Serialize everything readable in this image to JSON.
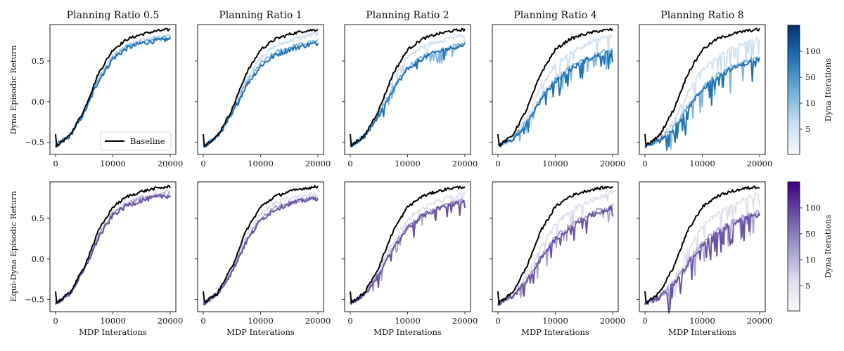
{
  "figure": {
    "row_ylabels": [
      "Dyna Episodic Return",
      "Equi-Dyna Episodic Return"
    ],
    "xlabel": "MDP Interations",
    "col_titles": [
      "Planning Ratio 0.5",
      "Planning Ratio 1",
      "Planning Ratio 2",
      "Planning Ratio 4",
      "Planning Ratio 8"
    ],
    "colorbar_label": "Dyna Iterations",
    "colorbar_ticks": [
      "5",
      "10",
      "50",
      "100"
    ],
    "legend_label": "Baseline",
    "x_ticks": [
      "0",
      "10000",
      "20000"
    ],
    "y_ticks": [
      "−0.5",
      "0.0",
      "0.5"
    ],
    "colors": {
      "baseline": "#000000",
      "dyna_light": "#c6dbef",
      "dyna_mid": "#6baed6",
      "dyna_dark": "#2171b5",
      "equi_light": "#d9d7ea",
      "equi_mid": "#9e9ac8",
      "equi_dark": "#6a51a3"
    }
  },
  "chart_data": [
    {
      "type": "line",
      "row": "Dyna",
      "title": "Planning Ratio 0.5",
      "xlabel": "",
      "ylabel": "Dyna Episodic Return",
      "xlim": [
        0,
        20000
      ],
      "ylim": [
        -0.65,
        0.95
      ],
      "legend": "lower right",
      "series": [
        {
          "name": "Baseline",
          "x": [
            0,
            2500,
            5000,
            7500,
            10000,
            12500,
            15000,
            17500,
            20000
          ],
          "y": [
            -0.55,
            -0.42,
            -0.1,
            0.35,
            0.64,
            0.77,
            0.83,
            0.87,
            0.89
          ]
        },
        {
          "x": [
            0,
            2500,
            5000,
            7500,
            10000,
            12500,
            15000,
            17500,
            20000
          ],
          "y": [
            -0.55,
            -0.42,
            -0.12,
            0.3,
            0.58,
            0.7,
            0.76,
            0.79,
            0.82
          ]
        },
        {
          "x": [
            0,
            2500,
            5000,
            7500,
            10000,
            12500,
            15000,
            17500,
            20000
          ],
          "y": [
            -0.55,
            -0.42,
            -0.13,
            0.28,
            0.55,
            0.68,
            0.74,
            0.77,
            0.79
          ]
        },
        {
          "x": [
            0,
            2500,
            5000,
            7500,
            10000,
            12500,
            15000,
            17500,
            20000
          ],
          "y": [
            -0.55,
            -0.42,
            -0.14,
            0.26,
            0.53,
            0.66,
            0.72,
            0.75,
            0.77
          ]
        }
      ]
    },
    {
      "type": "line",
      "row": "Dyna",
      "title": "Planning Ratio 1",
      "xlim": [
        0,
        20000
      ],
      "ylim": [
        -0.65,
        0.95
      ],
      "series": [
        {
          "name": "Baseline",
          "x": [
            0,
            2500,
            5000,
            7500,
            10000,
            12500,
            15000,
            17500,
            20000
          ],
          "y": [
            -0.55,
            -0.42,
            -0.1,
            0.35,
            0.64,
            0.77,
            0.83,
            0.87,
            0.89
          ]
        },
        {
          "x": [
            0,
            2500,
            5000,
            7500,
            10000,
            12500,
            15000,
            17500,
            20000
          ],
          "y": [
            -0.55,
            -0.42,
            -0.13,
            0.28,
            0.55,
            0.68,
            0.75,
            0.8,
            0.84
          ]
        },
        {
          "x": [
            0,
            2500,
            5000,
            7500,
            10000,
            12500,
            15000,
            17500,
            20000
          ],
          "y": [
            -0.55,
            -0.43,
            -0.15,
            0.22,
            0.47,
            0.6,
            0.67,
            0.71,
            0.74
          ]
        },
        {
          "x": [
            0,
            2500,
            5000,
            7500,
            10000,
            12500,
            15000,
            17500,
            20000
          ],
          "y": [
            -0.55,
            -0.43,
            -0.16,
            0.2,
            0.44,
            0.57,
            0.64,
            0.69,
            0.72
          ]
        }
      ]
    },
    {
      "type": "line",
      "row": "Dyna",
      "title": "Planning Ratio 2",
      "xlim": [
        0,
        20000
      ],
      "ylim": [
        -0.65,
        0.95
      ],
      "series": [
        {
          "name": "Baseline",
          "x": [
            0,
            2500,
            5000,
            7500,
            10000,
            12500,
            15000,
            17500,
            20000
          ],
          "y": [
            -0.55,
            -0.42,
            -0.1,
            0.35,
            0.64,
            0.77,
            0.83,
            0.87,
            0.89
          ]
        },
        {
          "x": [
            0,
            2500,
            5000,
            7500,
            10000,
            12500,
            15000,
            17500,
            20000
          ],
          "y": [
            -0.55,
            -0.42,
            -0.11,
            0.3,
            0.55,
            0.67,
            0.74,
            0.79,
            0.82
          ]
        },
        {
          "x": [
            0,
            2500,
            5000,
            7500,
            10000,
            12500,
            15000,
            17500,
            20000
          ],
          "y": [
            -0.55,
            -0.43,
            -0.16,
            0.18,
            0.42,
            0.55,
            0.62,
            0.67,
            0.71
          ]
        },
        {
          "x": [
            0,
            2500,
            5000,
            7500,
            10000,
            12500,
            15000,
            17500,
            20000
          ],
          "y": [
            -0.55,
            -0.43,
            -0.17,
            0.16,
            0.4,
            0.53,
            0.61,
            0.66,
            0.7
          ]
        }
      ]
    },
    {
      "type": "line",
      "row": "Dyna",
      "title": "Planning Ratio 4",
      "xlim": [
        0,
        20000
      ],
      "ylim": [
        -0.65,
        0.95
      ],
      "series": [
        {
          "name": "Baseline",
          "x": [
            0,
            2500,
            5000,
            7500,
            10000,
            12500,
            15000,
            17500,
            20000
          ],
          "y": [
            -0.55,
            -0.42,
            -0.1,
            0.35,
            0.64,
            0.77,
            0.83,
            0.87,
            0.89
          ]
        },
        {
          "x": [
            0,
            2500,
            5000,
            7500,
            10000,
            12500,
            15000,
            17500,
            20000
          ],
          "y": [
            -0.55,
            -0.45,
            -0.2,
            0.18,
            0.45,
            0.6,
            0.7,
            0.76,
            0.82
          ]
        },
        {
          "x": [
            0,
            2500,
            5000,
            7500,
            10000,
            12500,
            15000,
            17500,
            20000
          ],
          "y": [
            -0.55,
            -0.47,
            -0.25,
            0.05,
            0.28,
            0.42,
            0.52,
            0.6,
            0.65
          ]
        },
        {
          "x": [
            0,
            2500,
            5000,
            7500,
            10000,
            12500,
            15000,
            17500,
            20000
          ],
          "y": [
            -0.55,
            -0.47,
            -0.27,
            0.02,
            0.25,
            0.39,
            0.5,
            0.57,
            0.62
          ]
        }
      ]
    },
    {
      "type": "line",
      "row": "Dyna",
      "title": "Planning Ratio 8",
      "xlim": [
        0,
        20000
      ],
      "ylim": [
        -0.65,
        0.95
      ],
      "series": [
        {
          "name": "Baseline",
          "x": [
            0,
            2500,
            5000,
            7500,
            10000,
            12500,
            15000,
            17500,
            20000
          ],
          "y": [
            -0.55,
            -0.42,
            -0.1,
            0.35,
            0.64,
            0.77,
            0.83,
            0.87,
            0.89
          ]
        },
        {
          "x": [
            0,
            2500,
            5000,
            7500,
            10000,
            12500,
            15000,
            17500,
            20000
          ],
          "y": [
            -0.55,
            -0.47,
            -0.25,
            0.1,
            0.4,
            0.55,
            0.65,
            0.72,
            0.78
          ]
        },
        {
          "x": [
            0,
            2500,
            5000,
            7500,
            10000,
            12500,
            15000,
            17500,
            20000
          ],
          "y": [
            -0.55,
            -0.48,
            -0.32,
            -0.05,
            0.18,
            0.32,
            0.42,
            0.5,
            0.55
          ]
        },
        {
          "x": [
            0,
            2500,
            5000,
            7500,
            10000,
            12500,
            15000,
            17500,
            20000
          ],
          "y": [
            -0.55,
            -0.48,
            -0.33,
            -0.08,
            0.15,
            0.3,
            0.4,
            0.47,
            0.52
          ]
        }
      ]
    },
    {
      "type": "line",
      "row": "Equi-Dyna",
      "title": "",
      "xlabel": "MDP Interations",
      "ylabel": "Equi-Dyna Episodic Return",
      "xlim": [
        0,
        20000
      ],
      "ylim": [
        -0.65,
        0.95
      ],
      "series": [
        {
          "name": "Baseline",
          "x": [
            0,
            2500,
            5000,
            7500,
            10000,
            12500,
            15000,
            17500,
            20000
          ],
          "y": [
            -0.55,
            -0.42,
            -0.1,
            0.35,
            0.64,
            0.77,
            0.83,
            0.87,
            0.89
          ]
        },
        {
          "x": [
            0,
            2500,
            5000,
            7500,
            10000,
            12500,
            15000,
            17500,
            20000
          ],
          "y": [
            -0.55,
            -0.42,
            -0.12,
            0.3,
            0.58,
            0.7,
            0.76,
            0.8,
            0.83
          ]
        },
        {
          "x": [
            0,
            2500,
            5000,
            7500,
            10000,
            12500,
            15000,
            17500,
            20000
          ],
          "y": [
            -0.55,
            -0.42,
            -0.13,
            0.28,
            0.56,
            0.68,
            0.74,
            0.78,
            0.8
          ]
        },
        {
          "x": [
            0,
            2500,
            5000,
            7500,
            10000,
            12500,
            15000,
            17500,
            20000
          ],
          "y": [
            -0.55,
            -0.43,
            -0.14,
            0.26,
            0.54,
            0.66,
            0.72,
            0.76,
            0.78
          ]
        }
      ]
    },
    {
      "type": "line",
      "row": "Equi-Dyna",
      "title": "",
      "xlabel": "MDP Interations",
      "xlim": [
        0,
        20000
      ],
      "ylim": [
        -0.65,
        0.95
      ],
      "series": [
        {
          "name": "Baseline",
          "x": [
            0,
            2500,
            5000,
            7500,
            10000,
            12500,
            15000,
            17500,
            20000
          ],
          "y": [
            -0.55,
            -0.42,
            -0.1,
            0.35,
            0.64,
            0.77,
            0.83,
            0.87,
            0.89
          ]
        },
        {
          "x": [
            0,
            2500,
            5000,
            7500,
            10000,
            12500,
            15000,
            17500,
            20000
          ],
          "y": [
            -0.55,
            -0.42,
            -0.13,
            0.28,
            0.56,
            0.68,
            0.74,
            0.78,
            0.8
          ]
        },
        {
          "x": [
            0,
            2500,
            5000,
            7500,
            10000,
            12500,
            15000,
            17500,
            20000
          ],
          "y": [
            -0.55,
            -0.43,
            -0.15,
            0.23,
            0.5,
            0.63,
            0.69,
            0.73,
            0.76
          ]
        },
        {
          "x": [
            0,
            2500,
            5000,
            7500,
            10000,
            12500,
            15000,
            17500,
            20000
          ],
          "y": [
            -0.55,
            -0.43,
            -0.16,
            0.21,
            0.48,
            0.61,
            0.68,
            0.72,
            0.75
          ]
        }
      ]
    },
    {
      "type": "line",
      "row": "Equi-Dyna",
      "title": "",
      "xlabel": "MDP Interations",
      "xlim": [
        0,
        20000
      ],
      "ylim": [
        -0.65,
        0.95
      ],
      "series": [
        {
          "name": "Baseline",
          "x": [
            0,
            2500,
            5000,
            7500,
            10000,
            12500,
            15000,
            17500,
            20000
          ],
          "y": [
            -0.55,
            -0.42,
            -0.1,
            0.35,
            0.64,
            0.77,
            0.83,
            0.87,
            0.89
          ]
        },
        {
          "x": [
            0,
            2500,
            5000,
            7500,
            10000,
            12500,
            15000,
            17500,
            20000
          ],
          "y": [
            -0.55,
            -0.43,
            -0.14,
            0.22,
            0.48,
            0.62,
            0.7,
            0.76,
            0.82
          ]
        },
        {
          "x": [
            0,
            2500,
            5000,
            7500,
            10000,
            12500,
            15000,
            17500,
            20000
          ],
          "y": [
            -0.55,
            -0.44,
            -0.18,
            0.15,
            0.4,
            0.54,
            0.63,
            0.69,
            0.73
          ]
        },
        {
          "x": [
            0,
            2500,
            5000,
            7500,
            10000,
            12500,
            15000,
            17500,
            20000
          ],
          "y": [
            -0.55,
            -0.44,
            -0.19,
            0.13,
            0.38,
            0.52,
            0.61,
            0.67,
            0.71
          ]
        }
      ]
    },
    {
      "type": "line",
      "row": "Equi-Dyna",
      "title": "",
      "xlabel": "MDP Interations",
      "xlim": [
        0,
        20000
      ],
      "ylim": [
        -0.65,
        0.95
      ],
      "series": [
        {
          "name": "Baseline",
          "x": [
            0,
            2500,
            5000,
            7500,
            10000,
            12500,
            15000,
            17500,
            20000
          ],
          "y": [
            -0.55,
            -0.42,
            -0.1,
            0.35,
            0.64,
            0.77,
            0.83,
            0.87,
            0.89
          ]
        },
        {
          "x": [
            0,
            2500,
            5000,
            7500,
            10000,
            12500,
            15000,
            17500,
            20000
          ],
          "y": [
            -0.55,
            -0.45,
            -0.2,
            0.15,
            0.42,
            0.58,
            0.68,
            0.76,
            0.82
          ]
        },
        {
          "x": [
            0,
            2500,
            5000,
            7500,
            10000,
            12500,
            15000,
            17500,
            20000
          ],
          "y": [
            -0.55,
            -0.47,
            -0.26,
            0.03,
            0.27,
            0.41,
            0.52,
            0.6,
            0.66
          ]
        },
        {
          "x": [
            0,
            2500,
            5000,
            7500,
            10000,
            12500,
            15000,
            17500,
            20000
          ],
          "y": [
            -0.55,
            -0.47,
            -0.27,
            0.0,
            0.24,
            0.38,
            0.49,
            0.57,
            0.63
          ]
        }
      ]
    },
    {
      "type": "line",
      "row": "Equi-Dyna",
      "title": "",
      "xlabel": "MDP Interations",
      "xlim": [
        0,
        20000
      ],
      "ylim": [
        -0.65,
        0.95
      ],
      "series": [
        {
          "name": "Baseline",
          "x": [
            0,
            2500,
            5000,
            7500,
            10000,
            12500,
            15000,
            17500,
            20000
          ],
          "y": [
            -0.55,
            -0.42,
            -0.1,
            0.35,
            0.64,
            0.77,
            0.83,
            0.87,
            0.89
          ]
        },
        {
          "x": [
            0,
            2500,
            5000,
            7500,
            10000,
            12500,
            15000,
            17500,
            20000
          ],
          "y": [
            -0.55,
            -0.47,
            -0.24,
            0.1,
            0.4,
            0.56,
            0.66,
            0.74,
            0.8
          ]
        },
        {
          "x": [
            0,
            2500,
            5000,
            7500,
            10000,
            12500,
            15000,
            17500,
            20000
          ],
          "y": [
            -0.55,
            -0.48,
            -0.3,
            -0.03,
            0.2,
            0.35,
            0.45,
            0.53,
            0.58
          ]
        },
        {
          "x": [
            0,
            2500,
            5000,
            7500,
            10000,
            12500,
            15000,
            17500,
            20000
          ],
          "y": [
            -0.55,
            -0.48,
            -0.31,
            -0.06,
            0.17,
            0.32,
            0.43,
            0.5,
            0.55
          ]
        }
      ]
    }
  ]
}
